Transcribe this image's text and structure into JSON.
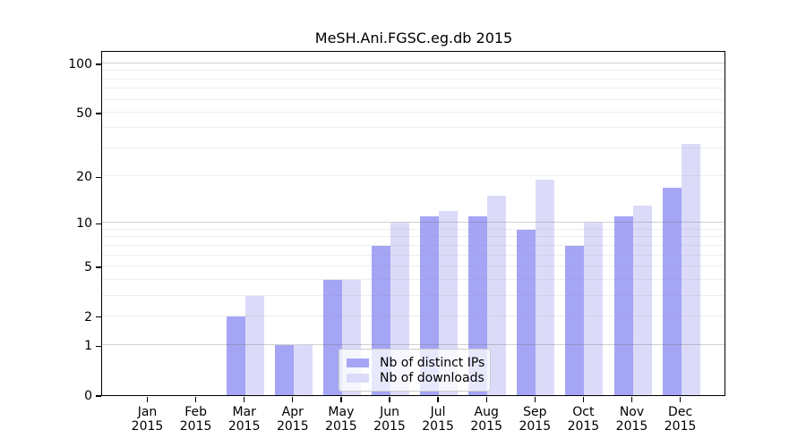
{
  "title": "MeSH.Ani.FGSC.eg.db 2015",
  "legend": {
    "items": [
      {
        "key": "ips",
        "label": "Nb of distinct IPs"
      },
      {
        "key": "downloads",
        "label": "Nb of downloads"
      }
    ]
  },
  "colors": {
    "bar_dark": "#a5a5f6",
    "bar_light": "#dbdbf9",
    "axis": "#000000",
    "grid_major": "#c9c9c9",
    "grid_minor": "#ededed",
    "legend_border": "#cccccc"
  },
  "chart_data": {
    "type": "bar",
    "title": "MeSH.Ani.FGSC.eg.db 2015",
    "xlabel": "",
    "ylabel": "",
    "year": "2015",
    "categories": [
      "Jan",
      "Feb",
      "Mar",
      "Apr",
      "May",
      "Jun",
      "Jul",
      "Aug",
      "Sep",
      "Oct",
      "Nov",
      "Dec"
    ],
    "series": [
      {
        "key": "ips",
        "name": "Nb of distinct IPs",
        "color": "#a5a5f6",
        "values": [
          0,
          0,
          2,
          1,
          4,
          7,
          11,
          11,
          9,
          7,
          11,
          17
        ]
      },
      {
        "key": "downloads",
        "name": "Nb of downloads",
        "color": "#dbdbf9",
        "values": [
          0,
          0,
          3,
          1,
          4,
          10,
          12,
          15,
          19,
          10,
          13,
          32
        ]
      }
    ],
    "y_scale": "log1p",
    "ylim": [
      0,
      120
    ],
    "y_ticks": [
      0,
      1,
      2,
      5,
      10,
      20,
      50,
      100
    ],
    "gridlines_major": [
      1,
      10,
      100
    ],
    "gridlines_minor": [
      2,
      3,
      4,
      5,
      6,
      7,
      8,
      9,
      20,
      30,
      40,
      50,
      60,
      70,
      80,
      90
    ],
    "grid": true,
    "legend_position": "lower-center-inside"
  }
}
